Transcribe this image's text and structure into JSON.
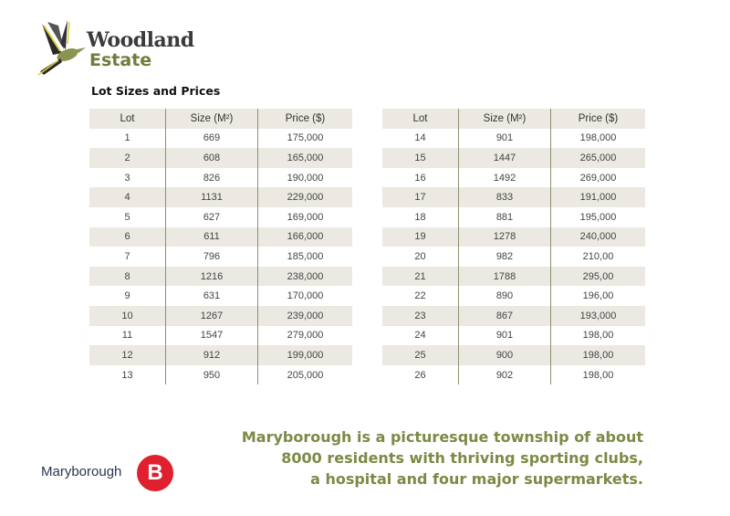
{
  "brand": {
    "name_line1": "Woodland",
    "name_line2": "Estate",
    "logo_icon": "bird-icon",
    "colors": {
      "dark": "#3b3b3b",
      "olive": "#6f7d3c"
    }
  },
  "title": "Lot Sizes and Prices",
  "table": {
    "headers": [
      "Lot",
      "Size (M²)",
      "Price ($)"
    ],
    "left_rows": [
      [
        "1",
        "669",
        "175,000"
      ],
      [
        "2",
        "608",
        "165,000"
      ],
      [
        "3",
        "826",
        "190,000"
      ],
      [
        "4",
        "1131",
        "229,000"
      ],
      [
        "5",
        "627",
        "169,000"
      ],
      [
        "6",
        "611",
        "166,000"
      ],
      [
        "7",
        "796",
        "185,000"
      ],
      [
        "8",
        "1216",
        "238,000"
      ],
      [
        "9",
        "631",
        "170,000"
      ],
      [
        "10",
        "1267",
        "239,000"
      ],
      [
        "11",
        "1547",
        "279,000"
      ],
      [
        "12",
        "912",
        "199,000"
      ],
      [
        "13",
        "950",
        "205,000"
      ]
    ],
    "right_rows": [
      [
        "14",
        "901",
        "198,000"
      ],
      [
        "15",
        "1447",
        "265,000"
      ],
      [
        "16",
        "1492",
        "269,000"
      ],
      [
        "17",
        "833",
        "191,000"
      ],
      [
        "18",
        "881",
        "195,000"
      ],
      [
        "19",
        "1278",
        "240,000"
      ],
      [
        "20",
        "982",
        "210,00"
      ],
      [
        "21",
        "1788",
        "295,00"
      ],
      [
        "22",
        "890",
        "196,00"
      ],
      [
        "23",
        "867",
        "193,000"
      ],
      [
        "24",
        "901",
        "198,00"
      ],
      [
        "25",
        "900",
        "198,00"
      ],
      [
        "26",
        "902",
        "198,00"
      ]
    ]
  },
  "blurb": {
    "lines": [
      "Maryborough is a picturesque township of about",
      "8000 residents with thriving sporting clubs,",
      "a hospital and four major supermarkets."
    ]
  },
  "footer_logo": {
    "text": "Maryborough",
    "mark": "B",
    "color": "#e0202e"
  }
}
